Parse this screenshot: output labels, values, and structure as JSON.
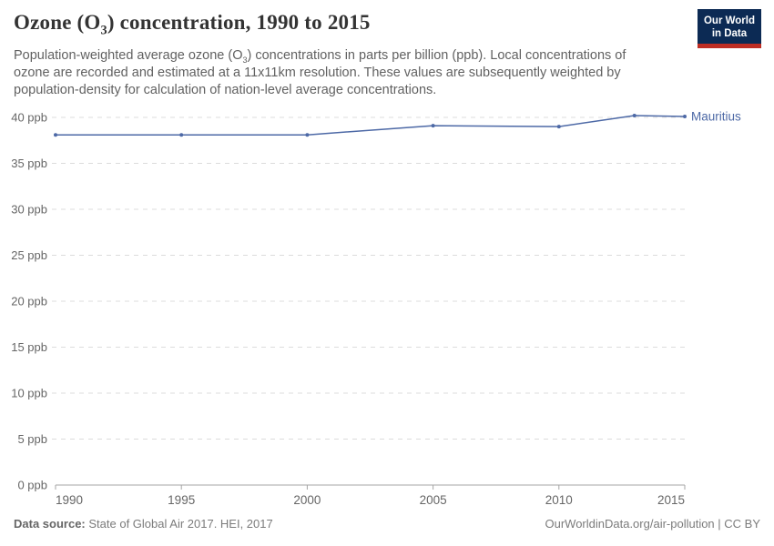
{
  "header": {
    "title_prefix": "Ozone (O",
    "title_sub": "3",
    "title_suffix": ") concentration, 1990 to 2015",
    "logo": {
      "line1": "Our World",
      "line2": "in Data"
    }
  },
  "subtitle": {
    "part1": "Population-weighted average ozone (O",
    "sub": "3",
    "part2": ") concentrations in parts per billion (ppb). Local concentrations of ozone are recorded and estimated at a 11x11km resolution. These values are subsequently weighted by population-density for calculation of nation-level average concentrations."
  },
  "chart_data": {
    "type": "line",
    "title": "Ozone (O3) concentration, 1990 to 2015",
    "x": [
      1990,
      1995,
      2000,
      2005,
      2010,
      2013,
      2015
    ],
    "series": [
      {
        "name": "Mauritius",
        "values": [
          38.1,
          38.1,
          38.1,
          39.1,
          39.0,
          40.2,
          40.1
        ],
        "color": "#4d69a6"
      }
    ],
    "x_ticks": [
      1990,
      1995,
      2000,
      2005,
      2010,
      2015
    ],
    "y_ticks": [
      0,
      5,
      10,
      15,
      20,
      25,
      30,
      35,
      40
    ],
    "y_tick_suffix": " ppb",
    "xlim": [
      1990,
      2015
    ],
    "ylim": [
      0,
      42
    ],
    "xlabel": "",
    "ylabel": "",
    "grid": "horizontal-dashed",
    "legend_position": "end-of-line-label"
  },
  "colors": {
    "line": "#4d69a6",
    "grid": "#dcdcdc",
    "axis": "#a5a5a5",
    "tick_label": "#666666",
    "logo_navy": "#0c2a54",
    "logo_red": "#be2d23"
  },
  "footer": {
    "source_label": "Data source:",
    "source_text": "State of Global Air 2017. HEI, 2017",
    "link_text": "OurWorldinData.org/air-pollution | CC BY"
  }
}
